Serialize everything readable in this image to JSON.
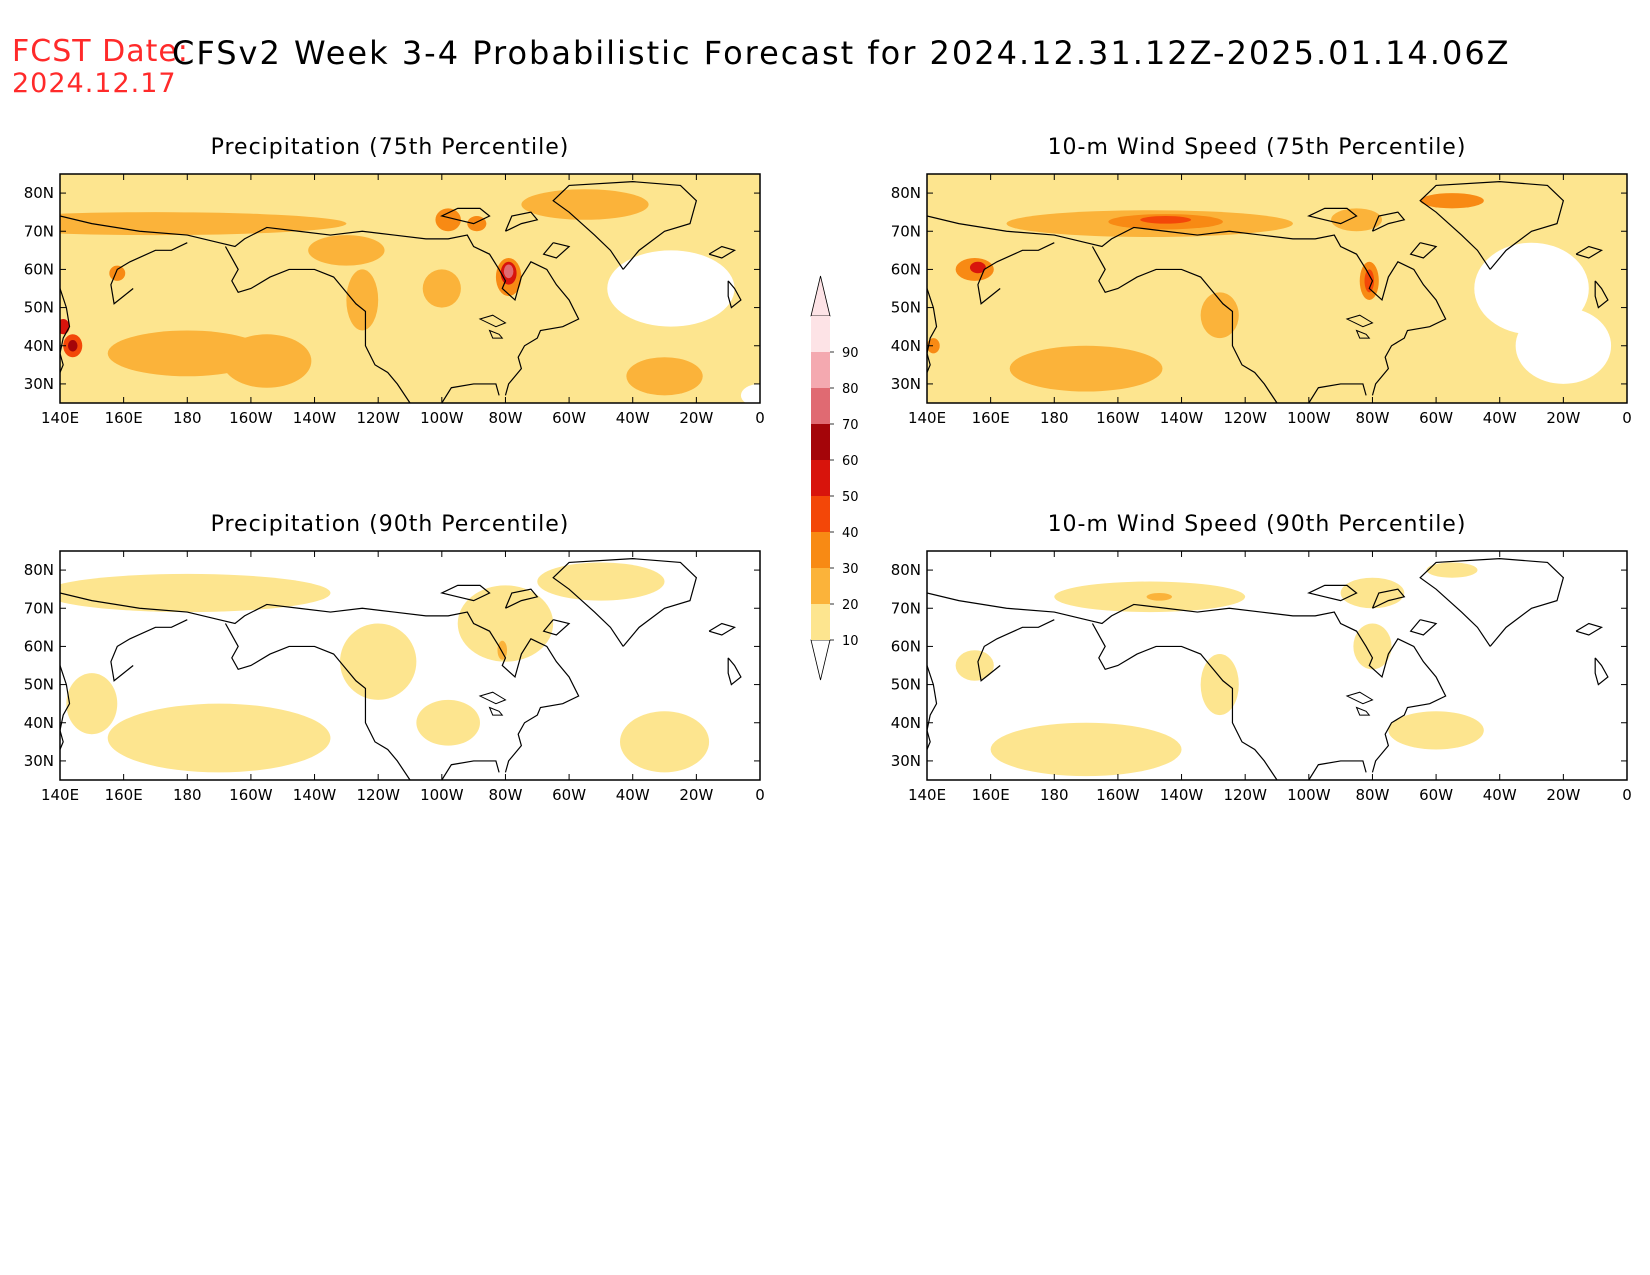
{
  "header": {
    "fcst_label": "FCST Date:",
    "fcst_date": "2024.12.17",
    "title": "CFSv2 Week 3-4 Probabilistic Forecast for 2024.12.31.12Z-2025.01.14.06Z"
  },
  "map_extent": {
    "lon_range": [
      140,
      360
    ],
    "lat_range": [
      25,
      85
    ]
  },
  "x_ticks": [
    "140E",
    "160E",
    "180",
    "160W",
    "140W",
    "120W",
    "100W",
    "80W",
    "60W",
    "40W",
    "20W",
    "0"
  ],
  "x_tick_lons": [
    140,
    160,
    180,
    200,
    220,
    240,
    260,
    280,
    300,
    320,
    340,
    360
  ],
  "y_ticks": [
    "80N",
    "70N",
    "60N",
    "50N",
    "40N",
    "30N"
  ],
  "y_tick_lats": [
    80,
    70,
    60,
    50,
    40,
    30
  ],
  "colorbar": {
    "levels": [
      "10",
      "20",
      "30",
      "40",
      "50",
      "60",
      "70",
      "80",
      "90"
    ],
    "colors": [
      "#fff7b2",
      "#fde58f",
      "#fbb33a",
      "#f88a14",
      "#f34708",
      "#d8140c",
      "#a40509",
      "#e06a72",
      "#f4a9b0",
      "#fde3e6"
    ]
  },
  "panels": [
    {
      "id": "precip-75",
      "title": "Precipitation (75th Percentile)",
      "background_level": 1,
      "blobs": [
        {
          "lon": 170,
          "lat": 72,
          "rlon": 60,
          "rlat": 3,
          "level": 2
        },
        {
          "lon": 230,
          "lat": 65,
          "rlon": 12,
          "rlat": 4,
          "level": 2
        },
        {
          "lon": 180,
          "lat": 38,
          "rlon": 25,
          "rlat": 6,
          "level": 2
        },
        {
          "lon": 205,
          "lat": 36,
          "rlon": 14,
          "rlat": 7,
          "level": 2
        },
        {
          "lon": 235,
          "lat": 52,
          "rlon": 5,
          "rlat": 8,
          "level": 2
        },
        {
          "lon": 260,
          "lat": 55,
          "rlon": 6,
          "rlat": 5,
          "level": 2
        },
        {
          "lon": 281,
          "lat": 58,
          "rlon": 4,
          "rlat": 5,
          "level": 3
        },
        {
          "lon": 281,
          "lat": 59,
          "rlon": 2.5,
          "rlat": 3,
          "level": 5
        },
        {
          "lon": 281,
          "lat": 59.5,
          "rlon": 1.5,
          "rlat": 1.8,
          "level": 7
        },
        {
          "lon": 262,
          "lat": 73,
          "rlon": 4,
          "rlat": 3,
          "level": 3
        },
        {
          "lon": 271,
          "lat": 72,
          "rlon": 3,
          "rlat": 2,
          "level": 3
        },
        {
          "lon": 158,
          "lat": 59,
          "rlon": 2.5,
          "rlat": 2,
          "level": 3
        },
        {
          "lon": 144,
          "lat": 40,
          "rlon": 3,
          "rlat": 3,
          "level": 4
        },
        {
          "lon": 144,
          "lat": 40,
          "rlon": 1.5,
          "rlat": 1.5,
          "level": 6
        },
        {
          "lon": 141,
          "lat": 45,
          "rlon": 2,
          "rlat": 2,
          "level": 5
        },
        {
          "lon": 330,
          "lat": 32,
          "rlon": 12,
          "rlat": 5,
          "level": 2
        },
        {
          "lon": 305,
          "lat": 77,
          "rlon": 20,
          "rlat": 4,
          "level": 2
        },
        {
          "lon": 360,
          "lat": 27,
          "rlon": 6,
          "rlat": 3,
          "level": 0
        },
        {
          "lon": 332,
          "lat": 55,
          "rlon": 20,
          "rlat": 10,
          "level": 0
        }
      ]
    },
    {
      "id": "wind-75",
      "title": "10-m Wind Speed (75th Percentile)",
      "background_level": 1,
      "blobs": [
        {
          "lon": 210,
          "lat": 72,
          "rlon": 45,
          "rlat": 3.5,
          "level": 2
        },
        {
          "lon": 215,
          "lat": 72.5,
          "rlon": 18,
          "rlat": 2,
          "level": 3
        },
        {
          "lon": 215,
          "lat": 73,
          "rlon": 8,
          "rlat": 1,
          "level": 4
        },
        {
          "lon": 155,
          "lat": 60,
          "rlon": 6,
          "rlat": 3,
          "level": 3
        },
        {
          "lon": 156,
          "lat": 60.5,
          "rlon": 2.5,
          "rlat": 1.5,
          "level": 5
        },
        {
          "lon": 190,
          "lat": 34,
          "rlon": 24,
          "rlat": 6,
          "level": 2
        },
        {
          "lon": 232,
          "lat": 48,
          "rlon": 6,
          "rlat": 6,
          "level": 2
        },
        {
          "lon": 279,
          "lat": 57,
          "rlon": 3,
          "rlat": 5,
          "level": 3
        },
        {
          "lon": 279,
          "lat": 57,
          "rlon": 1.5,
          "rlat": 3,
          "level": 4
        },
        {
          "lon": 275,
          "lat": 73,
          "rlon": 8,
          "rlat": 3,
          "level": 2
        },
        {
          "lon": 305,
          "lat": 78,
          "rlon": 10,
          "rlat": 2,
          "level": 3
        },
        {
          "lon": 142,
          "lat": 40,
          "rlon": 2,
          "rlat": 2,
          "level": 3
        },
        {
          "lon": 330,
          "lat": 55,
          "rlon": 18,
          "rlat": 12,
          "level": 0
        },
        {
          "lon": 340,
          "lat": 40,
          "rlon": 15,
          "rlat": 10,
          "level": 0
        }
      ]
    },
    {
      "id": "precip-90",
      "title": "Precipitation (90th Percentile)",
      "background_level": 0,
      "blobs": [
        {
          "lon": 180,
          "lat": 74,
          "rlon": 45,
          "rlat": 5,
          "level": 1
        },
        {
          "lon": 190,
          "lat": 36,
          "rlon": 35,
          "rlat": 9,
          "level": 1
        },
        {
          "lon": 240,
          "lat": 56,
          "rlon": 12,
          "rlat": 10,
          "level": 1
        },
        {
          "lon": 280,
          "lat": 66,
          "rlon": 15,
          "rlat": 10,
          "level": 1
        },
        {
          "lon": 279,
          "lat": 59,
          "rlon": 1.5,
          "rlat": 2.5,
          "level": 2
        },
        {
          "lon": 330,
          "lat": 35,
          "rlon": 14,
          "rlat": 8,
          "level": 1
        },
        {
          "lon": 262,
          "lat": 40,
          "rlon": 10,
          "rlat": 6,
          "level": 1
        },
        {
          "lon": 310,
          "lat": 77,
          "rlon": 20,
          "rlat": 5,
          "level": 1
        },
        {
          "lon": 150,
          "lat": 45,
          "rlon": 8,
          "rlat": 8,
          "level": 1
        }
      ]
    },
    {
      "id": "wind-90",
      "title": "10-m Wind Speed (90th Percentile)",
      "background_level": 0,
      "blobs": [
        {
          "lon": 210,
          "lat": 73,
          "rlon": 30,
          "rlat": 4,
          "level": 1
        },
        {
          "lon": 213,
          "lat": 73,
          "rlon": 4,
          "rlat": 1,
          "level": 2
        },
        {
          "lon": 190,
          "lat": 33,
          "rlon": 30,
          "rlat": 7,
          "level": 1
        },
        {
          "lon": 232,
          "lat": 50,
          "rlon": 6,
          "rlat": 8,
          "level": 1
        },
        {
          "lon": 280,
          "lat": 60,
          "rlon": 6,
          "rlat": 6,
          "level": 1
        },
        {
          "lon": 280,
          "lat": 74,
          "rlon": 10,
          "rlat": 4,
          "level": 1
        },
        {
          "lon": 305,
          "lat": 80,
          "rlon": 8,
          "rlat": 2,
          "level": 1
        },
        {
          "lon": 300,
          "lat": 38,
          "rlon": 15,
          "rlat": 5,
          "level": 1
        },
        {
          "lon": 155,
          "lat": 55,
          "rlon": 6,
          "rlat": 4,
          "level": 1
        }
      ]
    }
  ],
  "coastlines": [
    [
      [
        140,
        74
      ],
      [
        150,
        72
      ],
      [
        165,
        70
      ],
      [
        180,
        69
      ],
      [
        190,
        67
      ],
      [
        195,
        66
      ],
      [
        198,
        68
      ],
      [
        205,
        71
      ],
      [
        215,
        70
      ],
      [
        225,
        69
      ],
      [
        235,
        70
      ],
      [
        245,
        69
      ],
      [
        255,
        68
      ],
      [
        262,
        68
      ],
      [
        268,
        69
      ],
      [
        270,
        66
      ],
      [
        275,
        64
      ],
      [
        278,
        60
      ],
      [
        280,
        57
      ],
      [
        279,
        55
      ],
      [
        283,
        52
      ],
      [
        285,
        58
      ],
      [
        288,
        62
      ],
      [
        293,
        60
      ],
      [
        296,
        56
      ],
      [
        300,
        52
      ],
      [
        303,
        47
      ],
      [
        298,
        45
      ],
      [
        291,
        44
      ],
      [
        290,
        42
      ],
      [
        286,
        40
      ],
      [
        284,
        37
      ],
      [
        285,
        34
      ],
      [
        281,
        30
      ],
      [
        280,
        27
      ]
    ],
    [
      [
        278,
        27
      ],
      [
        277,
        30
      ],
      [
        270,
        30
      ],
      [
        263,
        29
      ],
      [
        260,
        25
      ]
    ],
    [
      [
        250,
        25
      ],
      [
        246,
        30
      ],
      [
        243,
        33
      ],
      [
        239,
        35
      ],
      [
        236,
        40
      ],
      [
        236,
        45
      ],
      [
        236,
        49
      ],
      [
        233,
        51
      ],
      [
        229,
        55
      ],
      [
        226,
        58
      ],
      [
        220,
        60
      ],
      [
        212,
        60
      ],
      [
        206,
        58
      ],
      [
        200,
        55
      ],
      [
        196,
        54
      ],
      [
        194,
        57
      ],
      [
        196,
        60
      ],
      [
        194,
        63
      ],
      [
        192,
        66
      ]
    ],
    [
      [
        317,
        60
      ],
      [
        313,
        65
      ],
      [
        308,
        69
      ],
      [
        300,
        75
      ],
      [
        295,
        78
      ],
      [
        300,
        82
      ],
      [
        320,
        83
      ],
      [
        335,
        82
      ],
      [
        340,
        78
      ],
      [
        338,
        72
      ],
      [
        330,
        70
      ],
      [
        322,
        65
      ],
      [
        317,
        60
      ]
    ],
    [
      [
        163,
        55
      ],
      [
        160,
        53
      ],
      [
        157,
        51
      ],
      [
        156,
        56
      ],
      [
        158,
        60
      ],
      [
        162,
        62
      ],
      [
        170,
        65
      ],
      [
        175,
        65
      ],
      [
        180,
        67
      ]
    ],
    [
      [
        140,
        55
      ],
      [
        142,
        50
      ],
      [
        143,
        45
      ],
      [
        141,
        42
      ],
      [
        140,
        38
      ],
      [
        141,
        35
      ],
      [
        140,
        33
      ]
    ],
    [
      [
        265,
        73
      ],
      [
        270,
        72
      ],
      [
        275,
        74
      ],
      [
        272,
        76
      ],
      [
        265,
        76
      ],
      [
        260,
        74
      ],
      [
        265,
        73
      ]
    ],
    [
      [
        280,
        70
      ],
      [
        285,
        72
      ],
      [
        290,
        73
      ],
      [
        288,
        75
      ],
      [
        282,
        74
      ],
      [
        280,
        70
      ]
    ],
    [
      [
        295,
        67
      ],
      [
        300,
        66
      ],
      [
        296,
        63
      ],
      [
        292,
        64
      ],
      [
        295,
        67
      ]
    ],
    [
      [
        350,
        57
      ],
      [
        352,
        55
      ],
      [
        354,
        52
      ],
      [
        351,
        50
      ],
      [
        350,
        53
      ],
      [
        350,
        57
      ]
    ],
    [
      [
        344,
        64
      ],
      [
        348,
        66
      ],
      [
        352,
        65
      ],
      [
        348,
        63
      ],
      [
        344,
        64
      ]
    ]
  ],
  "lakes": [
    [
      [
        272,
        47
      ],
      [
        276,
        48
      ],
      [
        280,
        46
      ],
      [
        277,
        45
      ],
      [
        272,
        47
      ]
    ],
    [
      [
        275,
        44
      ],
      [
        278,
        43
      ],
      [
        279,
        42
      ],
      [
        276,
        42
      ],
      [
        275,
        44
      ]
    ]
  ]
}
